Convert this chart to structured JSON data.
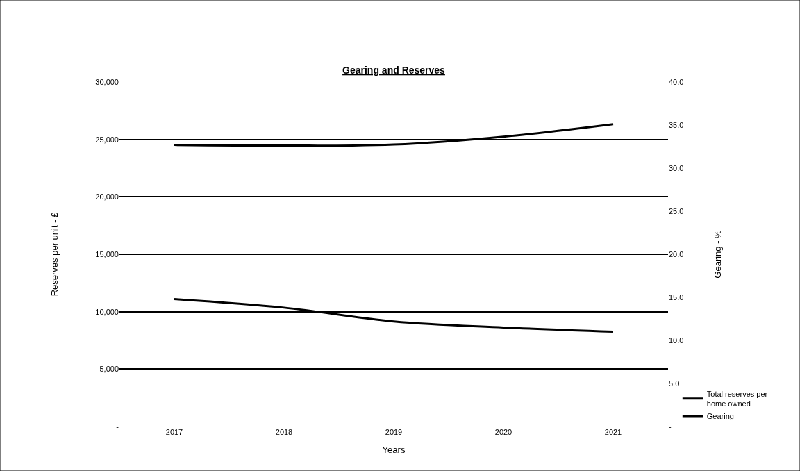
{
  "chart_data": {
    "type": "line",
    "title": "Gearing and Reserves",
    "xlabel": "Years",
    "ylabel": "Reserves per unit - £",
    "y2label": "Gearing - %",
    "categories": [
      "2017",
      "2018",
      "2019",
      "2020",
      "2021"
    ],
    "series": [
      {
        "name": "Total reserves per home owned",
        "color": "#000000",
        "values": [
          24520,
          24460,
          24550,
          25240,
          26330
        ]
      },
      {
        "name": "Gearing",
        "color": "#000000",
        "axis": "y2",
        "values": [
          14.8,
          13.8,
          12.2,
          11.5,
          11.0
        ]
      }
    ],
    "ylim": [
      0,
      30000
    ],
    "yticks": [
      {
        "value": 0,
        "label": "-"
      },
      {
        "value": 5000,
        "label": "5,000"
      },
      {
        "value": 10000,
        "label": "10,000"
      },
      {
        "value": 15000,
        "label": "15,000"
      },
      {
        "value": 20000,
        "label": "20,000"
      },
      {
        "value": 25000,
        "label": "25,000"
      },
      {
        "value": 30000,
        "label": "30,000"
      }
    ],
    "y2lim": [
      0,
      40
    ],
    "y2ticks": [
      {
        "value": 0,
        "label": "-"
      },
      {
        "value": 5,
        "label": "5.0"
      },
      {
        "value": 10,
        "label": "10.0"
      },
      {
        "value": 15,
        "label": "15.0"
      },
      {
        "value": 20,
        "label": "20.0"
      },
      {
        "value": 25,
        "label": "25.0"
      },
      {
        "value": 30,
        "label": "30.0"
      },
      {
        "value": 35,
        "label": "35.0"
      },
      {
        "value": 40,
        "label": "40.0"
      }
    ],
    "grid": "y",
    "legend": "bottom right",
    "marker": "none",
    "line_style": "solid"
  }
}
